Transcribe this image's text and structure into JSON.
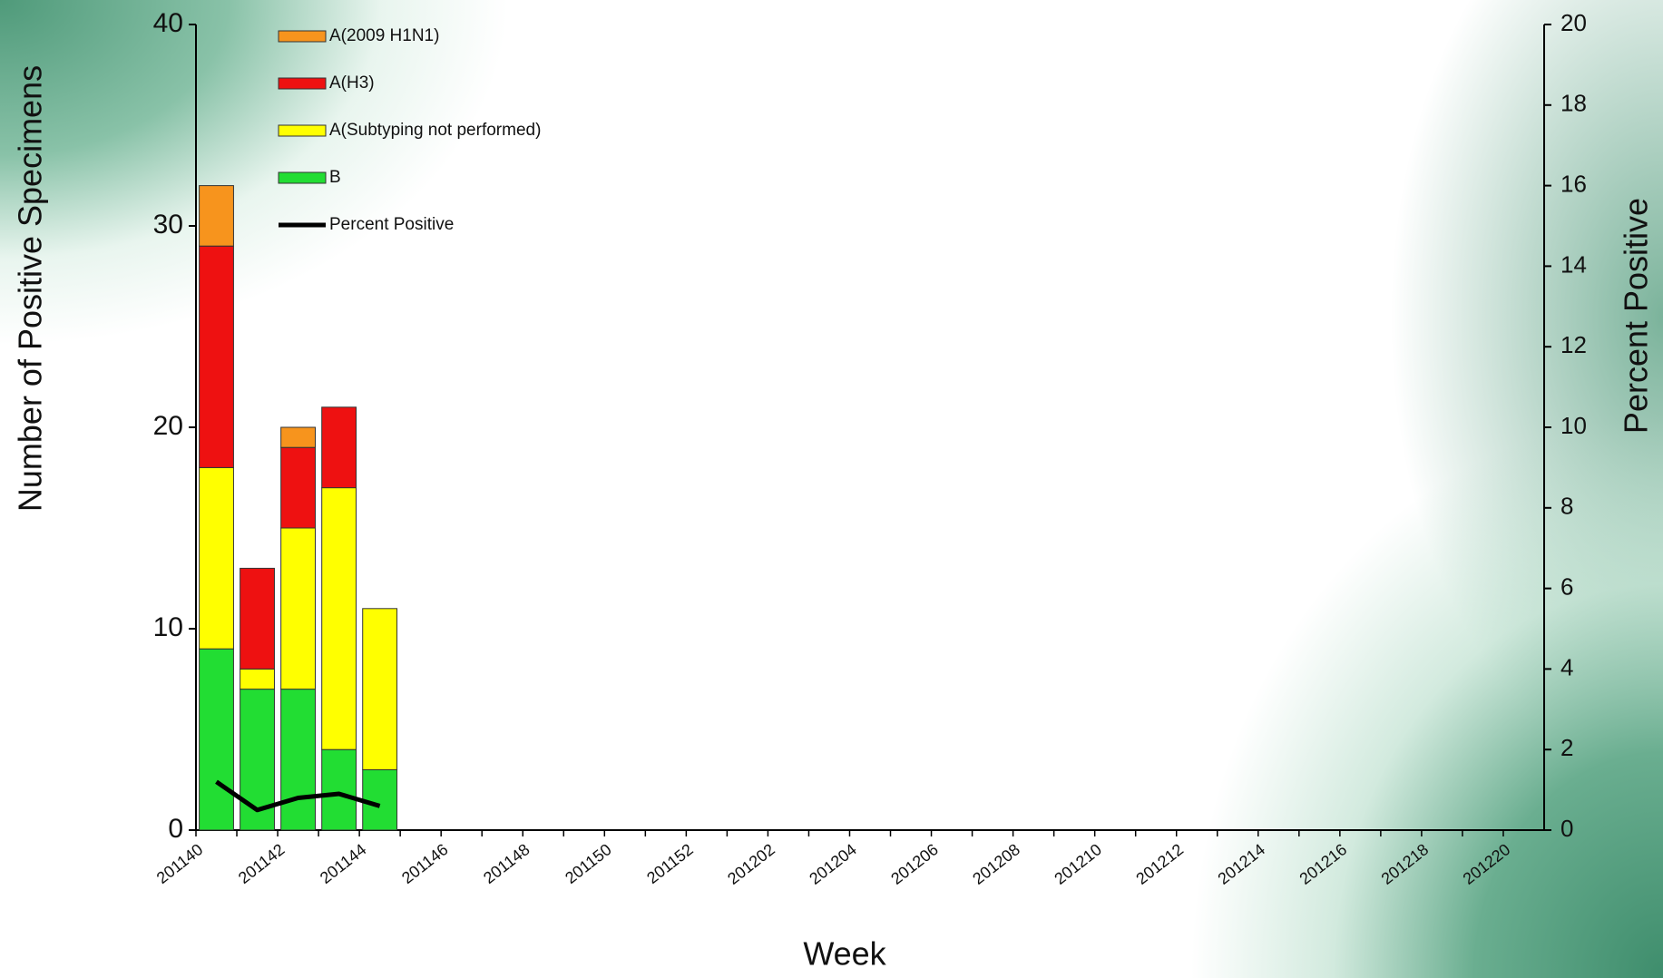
{
  "chart_data": {
    "type": "bar",
    "x_label": "Week",
    "y_label": "Number of Positive Specimens",
    "y2_label": "Percent Positive",
    "stacked": true,
    "categories": [
      "201140",
      null,
      "201142",
      null,
      "201144",
      null,
      "201146",
      null,
      "201148",
      null,
      "201150",
      null,
      "201152",
      null,
      "201202",
      null,
      "201204",
      null,
      "201206",
      null,
      "201208",
      null,
      "201210",
      null,
      "201212",
      null,
      "201214",
      null,
      "201216",
      null,
      "201218",
      null,
      "201220"
    ],
    "series": [
      {
        "name": "A(2009 H1N1)",
        "color": "#f7941d",
        "values": [
          3,
          0,
          1,
          0,
          0,
          null,
          null,
          null,
          null,
          null,
          null,
          null,
          null,
          null,
          null,
          null,
          null,
          null,
          null,
          null,
          null,
          null,
          null,
          null,
          null,
          null,
          null,
          null,
          null,
          null,
          null,
          null,
          null
        ]
      },
      {
        "name": "A(H3)",
        "color": "#ee1111",
        "values": [
          11,
          5,
          4,
          4,
          0,
          null,
          null,
          null,
          null,
          null,
          null,
          null,
          null,
          null,
          null,
          null,
          null,
          null,
          null,
          null,
          null,
          null,
          null,
          null,
          null,
          null,
          null,
          null,
          null,
          null,
          null,
          null,
          null
        ]
      },
      {
        "name": "A(Subtyping not performed)",
        "color": "#ffff00",
        "values": [
          9,
          1,
          8,
          13,
          8,
          null,
          null,
          null,
          null,
          null,
          null,
          null,
          null,
          null,
          null,
          null,
          null,
          null,
          null,
          null,
          null,
          null,
          null,
          null,
          null,
          null,
          null,
          null,
          null,
          null,
          null,
          null,
          null
        ]
      },
      {
        "name": "B",
        "color": "#22dd33",
        "values": [
          9,
          7,
          7,
          4,
          3,
          null,
          null,
          null,
          null,
          null,
          null,
          null,
          null,
          null,
          null,
          null,
          null,
          null,
          null,
          null,
          null,
          null,
          null,
          null,
          null,
          null,
          null,
          null,
          null,
          null,
          null,
          null,
          null
        ]
      },
      {
        "name": "Percent Positive",
        "color": "#000000",
        "type": "line",
        "axis": "y2",
        "values": [
          1.2,
          0.5,
          0.8,
          0.9,
          0.6,
          null,
          null,
          null,
          null,
          null,
          null,
          null,
          null,
          null,
          null,
          null,
          null,
          null,
          null,
          null,
          null,
          null,
          null,
          null,
          null,
          null,
          null,
          null,
          null,
          null,
          null,
          null,
          null
        ]
      }
    ],
    "ylim": [
      0,
      40
    ],
    "yticks": [
      0,
      10,
      20,
      30,
      40
    ],
    "y2lim": [
      0,
      20
    ],
    "y2ticks": [
      0,
      2,
      4,
      6,
      8,
      10,
      12,
      14,
      16,
      18,
      20
    ],
    "legend": "upper left"
  }
}
